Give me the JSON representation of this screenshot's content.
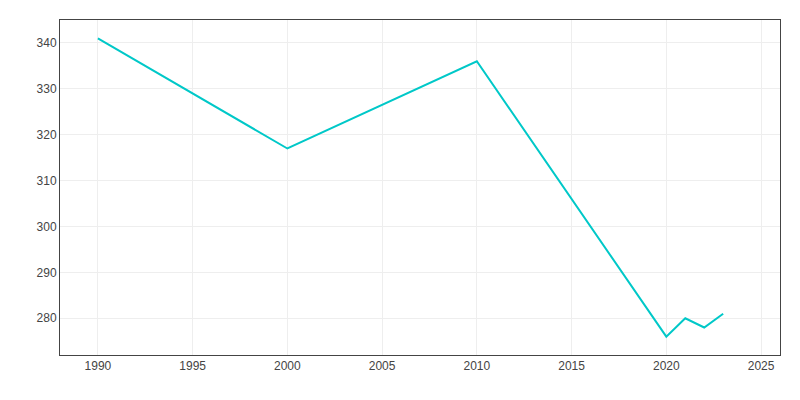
{
  "chart_data": {
    "type": "line",
    "x": [
      1990,
      2000,
      2010,
      2020,
      2021,
      2022,
      2023
    ],
    "values": [
      341,
      317,
      336,
      276,
      280,
      278,
      281
    ],
    "color": "#00c8c8",
    "xlim": [
      1988,
      2026
    ],
    "xticks": [
      1990,
      1995,
      2000,
      2005,
      2010,
      2015,
      2020,
      2025
    ],
    "ylim": [
      272,
      345
    ],
    "yticks": [
      280,
      290,
      300,
      310,
      320,
      330,
      340
    ],
    "grid": true
  }
}
